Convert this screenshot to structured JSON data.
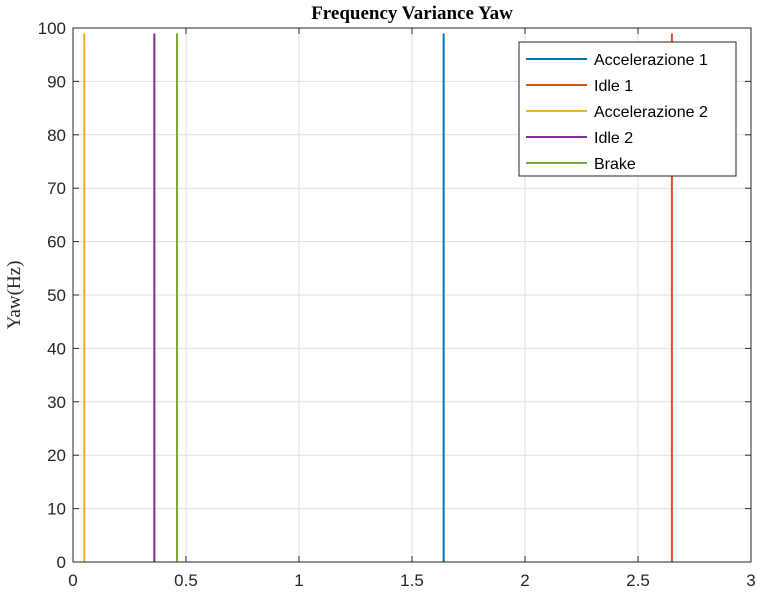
{
  "chart_data": {
    "type": "line",
    "title": "Frequency Variance Yaw",
    "xlabel": "",
    "ylabel": "Yaw(Hz)",
    "xlim": [
      0,
      3
    ],
    "ylim": [
      0,
      100
    ],
    "xticks": [
      0,
      0.5,
      1,
      1.5,
      2,
      2.5,
      3
    ],
    "xtick_labels": [
      "0",
      "0.5",
      "1",
      "1.5",
      "2",
      "2.5",
      "3"
    ],
    "yticks": [
      0,
      10,
      20,
      30,
      40,
      50,
      60,
      70,
      80,
      90,
      100
    ],
    "ytick_labels": [
      "0",
      "10",
      "20",
      "30",
      "40",
      "50",
      "60",
      "70",
      "80",
      "90",
      "100"
    ],
    "grid": true,
    "legend_position": "top-right",
    "series": [
      {
        "name": "Accelerazione 1",
        "color": "#0072BD",
        "x": [
          1.64,
          1.64
        ],
        "y": [
          0,
          99
        ]
      },
      {
        "name": "Idle 1",
        "color": "#D95319",
        "x": [
          2.65,
          2.65
        ],
        "y": [
          0,
          99
        ]
      },
      {
        "name": "Accelerazione 2",
        "color": "#EDB120",
        "x": [
          0.05,
          0.05
        ],
        "y": [
          0,
          99
        ]
      },
      {
        "name": "Idle 2",
        "color": "#7E2F8E",
        "x": [
          0.36,
          0.36
        ],
        "y": [
          0,
          99
        ]
      },
      {
        "name": "Brake",
        "color": "#77AC30",
        "x": [
          0.46,
          0.46
        ],
        "y": [
          0,
          99
        ]
      }
    ]
  }
}
